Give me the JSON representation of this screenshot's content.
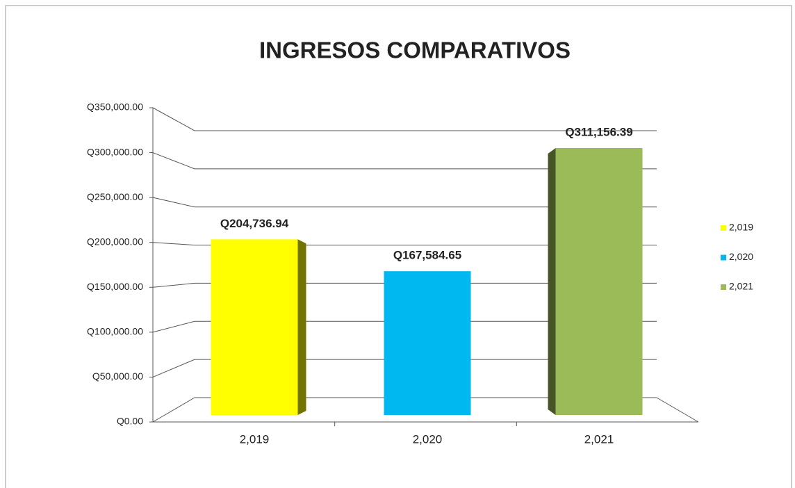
{
  "chart_data": {
    "type": "bar",
    "title": "INGRESOS COMPARATIVOS",
    "categories": [
      "2,019",
      "2,020",
      "2,021"
    ],
    "values": [
      204736.94,
      167584.65,
      311156.39
    ],
    "value_labels": [
      "Q204,736.94",
      "Q167,584.65",
      "Q311,156.39"
    ],
    "colors": [
      "#ffff00",
      "#00b8f0",
      "#9bbb59"
    ],
    "ylim": [
      0,
      350000
    ],
    "yticks": [
      {
        "value": 0,
        "label": "Q0.00"
      },
      {
        "value": 50000,
        "label": "Q50,000.00"
      },
      {
        "value": 100000,
        "label": "Q100,000.00"
      },
      {
        "value": 150000,
        "label": "Q150,000.00"
      },
      {
        "value": 200000,
        "label": "Q200,000.00"
      },
      {
        "value": 250000,
        "label": "Q250,000.00"
      },
      {
        "value": 300000,
        "label": "Q300,000.00"
      },
      {
        "value": 350000,
        "label": "Q350,000.00"
      }
    ],
    "grid": true,
    "legend": "right"
  }
}
